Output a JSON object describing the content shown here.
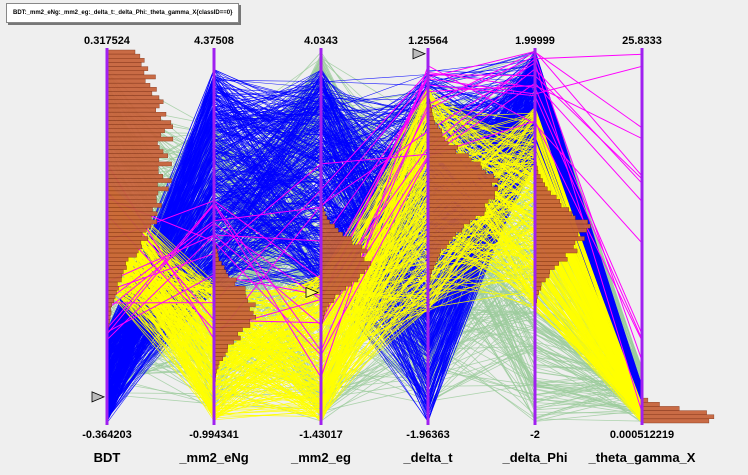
{
  "title": "BDT:_mm2_eNg:_mm2_eg:_delta_t:_delta_Phi:_theta_gamma_X{classID==0}",
  "chart_data": {
    "type": "parallel_coordinates",
    "axes": [
      {
        "name": "BDT",
        "max": "0.317524",
        "min": "-0.364203"
      },
      {
        "name": "_mm2_eNg",
        "max": "4.37508",
        "min": "-0.994341"
      },
      {
        "name": "_mm2_eg",
        "max": "4.0343",
        "min": "-1.43017"
      },
      {
        "name": "_delta_t",
        "max": "1.25564",
        "min": "-1.96363"
      },
      {
        "name": "_delta_Phi",
        "max": "1.99999",
        "min": "-2"
      },
      {
        "name": "_theta_gamma_X",
        "max": "25.8333",
        "min": "0.000512219"
      }
    ],
    "line_colors": {
      "band_green": "#9ccc9c",
      "blue": "#0000ff",
      "yellow": "#ffff00",
      "magenta": "#ff00ff"
    },
    "axis_color": "#a020f0",
    "histogram_color": "#c8643c",
    "range_markers": [
      {
        "axis": "BDT",
        "fraction": 0.07
      },
      {
        "axis": "_mm2_eg",
        "fraction": 0.35
      },
      {
        "axis": "_delta_t",
        "fraction": 0.99
      }
    ]
  }
}
